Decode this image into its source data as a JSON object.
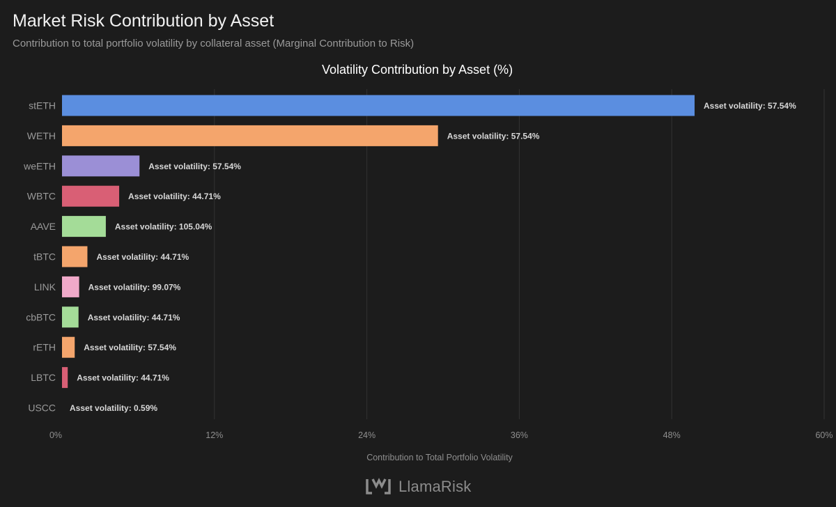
{
  "header": {
    "title": "Market Risk Contribution by Asset",
    "subtitle": "Contribution to total portfolio volatility by collateral asset (Marginal Contribution to Risk)"
  },
  "footer": {
    "brand": "LlamaRisk",
    "logo_icon": "llamarisk-logo-icon"
  },
  "chart_data": {
    "type": "bar",
    "orientation": "horizontal",
    "title": "Volatility Contribution by Asset (%)",
    "xlabel": "Contribution to Total Portfolio Volatility",
    "ylabel": "",
    "xlim": [
      0,
      60
    ],
    "xticks": [
      0,
      12,
      24,
      36,
      48,
      60
    ],
    "xtick_labels": [
      "0%",
      "12%",
      "24%",
      "36%",
      "48%",
      "60%"
    ],
    "grid": true,
    "categories": [
      "stETH",
      "WETH",
      "weETH",
      "WBTC",
      "AAVE",
      "tBTC",
      "LINK",
      "cbBTC",
      "rETH",
      "LBTC",
      "USCC"
    ],
    "values": [
      49.8,
      29.6,
      6.1,
      4.5,
      3.45,
      2.0,
      1.35,
      1.3,
      1.0,
      0.45,
      0.0
    ],
    "colors": [
      "#5b8ee0",
      "#f4a56c",
      "#9b8fd6",
      "#d95f75",
      "#a4dc98",
      "#f4a56c",
      "#f0a9c9",
      "#a4dc98",
      "#f4a56c",
      "#d95f75",
      "#f4a56c"
    ],
    "data_labels": [
      "Asset volatility: 57.54%",
      "Asset volatility: 57.54%",
      "Asset volatility: 57.54%",
      "Asset volatility: 44.71%",
      "Asset volatility: 105.04%",
      "Asset volatility: 44.71%",
      "Asset volatility: 99.07%",
      "Asset volatility: 44.71%",
      "Asset volatility: 57.54%",
      "Asset volatility: 44.71%",
      "Asset volatility: 0.59%"
    ]
  }
}
